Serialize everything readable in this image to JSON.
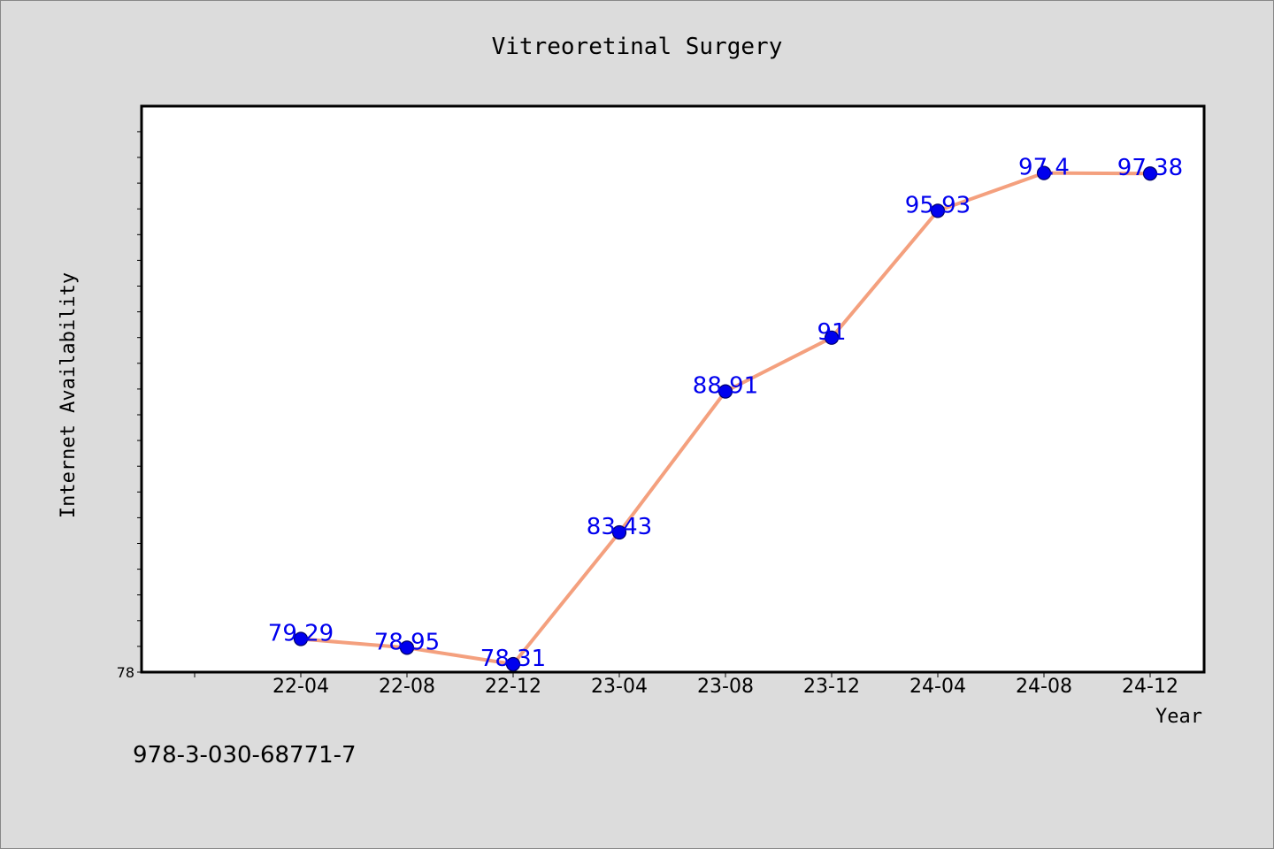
{
  "footer_text": "978-3-030-68771-7",
  "colors": {
    "background": "#dcdcdc",
    "plot_background": "#ffffff",
    "line": "#f4a07e",
    "marker": "#0000ee",
    "data_label": "#0000ee"
  },
  "chart_data": {
    "type": "line",
    "title": "Vitreoretinal Surgery",
    "xlabel": "Year",
    "ylabel": "Internet Availability",
    "categories": [
      "22-04",
      "22-08",
      "22-12",
      "23-04",
      "23-08",
      "23-12",
      "24-04",
      "24-08",
      "24-12"
    ],
    "series": [
      {
        "values": [
          79.29,
          78.95,
          78.31,
          83.43,
          88.91,
          91,
          95.93,
          97.4,
          97.38
        ],
        "labels": [
          "79.29",
          "78.95",
          "78.31",
          "83.43",
          "88.91",
          "91",
          "95.93",
          "97.4",
          "97.38"
        ]
      }
    ],
    "ylim": [
      78,
      100
    ],
    "y_tick_labels": [
      "78"
    ],
    "grid": false,
    "legend": "none"
  }
}
